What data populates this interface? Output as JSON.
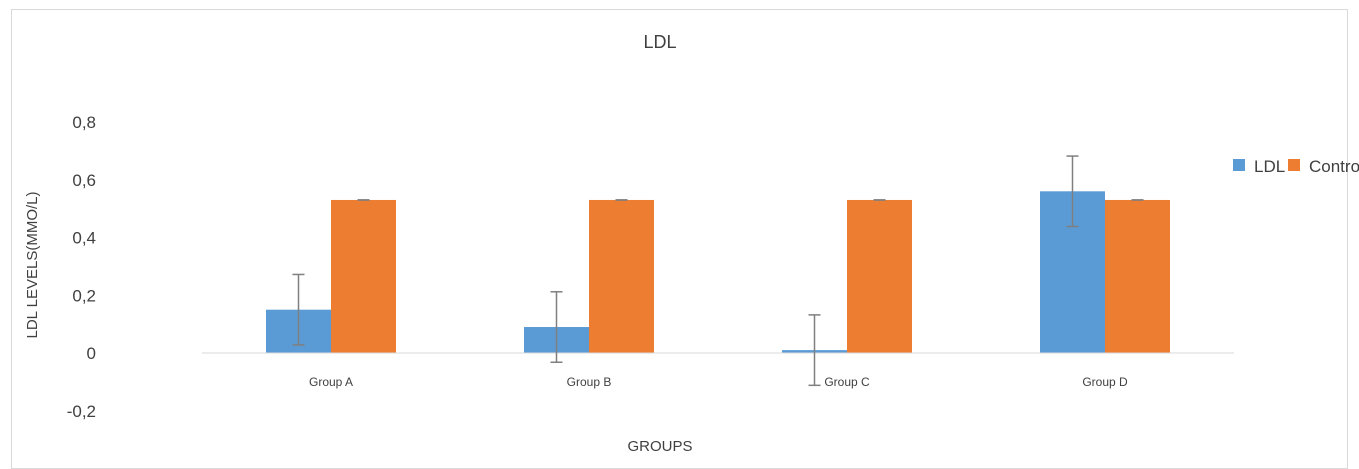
{
  "chart_data": {
    "type": "bar",
    "title": "LDL",
    "xlabel": "GROUPS",
    "ylabel": "LDL LEVELS(MMO/L)",
    "categories": [
      "Group A",
      "Group B",
      "Group C",
      "Group D"
    ],
    "series": [
      {
        "name": "LDL",
        "color": "#5b9bd5",
        "values": [
          0.15,
          0.09,
          0.01,
          0.56
        ],
        "error": [
          0.122,
          0.122,
          0.122,
          0.122
        ]
      },
      {
        "name": "Control",
        "color": "#ed7d31",
        "values": [
          0.53,
          0.53,
          0.53,
          0.53
        ],
        "error": [
          0.0,
          0.0,
          0.0,
          0.0
        ]
      }
    ],
    "ylim": [
      -0.2,
      0.8
    ],
    "yticks": [
      -0.2,
      0,
      0.2,
      0.4,
      0.6,
      0.8
    ],
    "ytick_labels": [
      "-0,2",
      "0",
      "0,2",
      "0,4",
      "0,6",
      "0,8"
    ],
    "grid": false,
    "legend_position": "right"
  }
}
